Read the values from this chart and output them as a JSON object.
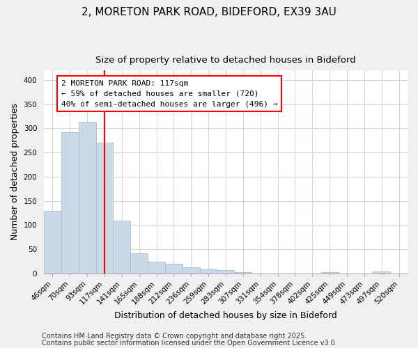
{
  "title": "2, MORETON PARK ROAD, BIDEFORD, EX39 3AU",
  "subtitle": "Size of property relative to detached houses in Bideford",
  "xlabel": "Distribution of detached houses by size in Bideford",
  "ylabel": "Number of detached properties",
  "bar_labels": [
    "46sqm",
    "70sqm",
    "93sqm",
    "117sqm",
    "141sqm",
    "165sqm",
    "188sqm",
    "212sqm",
    "236sqm",
    "259sqm",
    "283sqm",
    "307sqm",
    "331sqm",
    "354sqm",
    "378sqm",
    "402sqm",
    "425sqm",
    "449sqm",
    "473sqm",
    "497sqm",
    "520sqm"
  ],
  "bar_heights": [
    130,
    292,
    314,
    270,
    109,
    42,
    24,
    20,
    12,
    9,
    7,
    3,
    0,
    0,
    0,
    0,
    3,
    0,
    0,
    4,
    0
  ],
  "bar_color": "#c9d9e8",
  "bar_edge_color": "#a0b8cc",
  "vline_x": 3,
  "vline_color": "red",
  "annotation_title": "2 MORETON PARK ROAD: 117sqm",
  "annotation_line1": "← 59% of detached houses are smaller (720)",
  "annotation_line2": "40% of semi-detached houses are larger (496) →",
  "annotation_box_color": "white",
  "annotation_box_edge": "red",
  "ylim": [
    0,
    420
  ],
  "yticks": [
    0,
    50,
    100,
    150,
    200,
    250,
    300,
    350,
    400
  ],
  "footer1": "Contains HM Land Registry data © Crown copyright and database right 2025.",
  "footer2": "Contains public sector information licensed under the Open Government Licence v3.0.",
  "bg_color": "#f0f0f0",
  "plot_bg_color": "#ffffff",
  "grid_color": "#d0d8e0",
  "title_fontsize": 11,
  "subtitle_fontsize": 9.5,
  "label_fontsize": 9,
  "tick_fontsize": 7.5,
  "footer_fontsize": 7,
  "ann_fontsize": 8
}
